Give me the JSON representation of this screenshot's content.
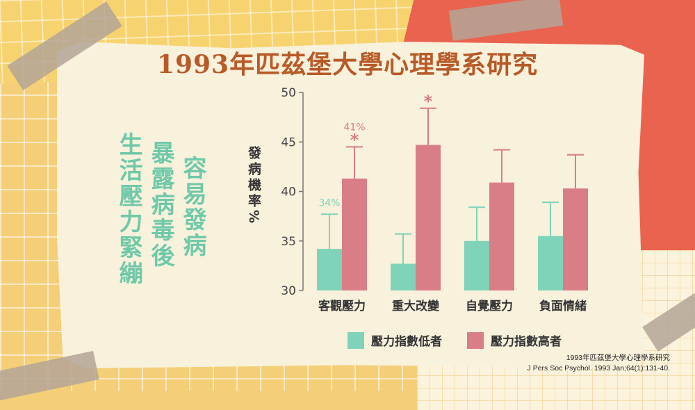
{
  "title": "1993年匹茲堡大學心理學系研究",
  "side_text": [
    "生活壓力緊繃",
    "暴露病毒後",
    "容易發病"
  ],
  "citation": [
    "1993年匹茲堡大學心理學系研究",
    "J Pers Soc Psychol. 1993 Jan;64(1):131-40."
  ],
  "colors": {
    "low": "#7fd3b8",
    "high": "#d97d87",
    "title": "#b85a27",
    "side_text": "#6fc9a8"
  },
  "chart_data": {
    "type": "bar",
    "ylabel": "發病機率%",
    "ylim": [
      30,
      50
    ],
    "yticks": [
      30,
      35,
      40,
      45,
      50
    ],
    "categories": [
      "客觀壓力",
      "重大改變",
      "自覺壓力",
      "負面情緒"
    ],
    "series": [
      {
        "name": "壓力指數低者",
        "values": [
          34.2,
          32.7,
          35.0,
          35.5
        ],
        "error_top": [
          37.7,
          35.7,
          38.4,
          38.9
        ]
      },
      {
        "name": "壓力指數高者",
        "values": [
          41.3,
          44.7,
          40.9,
          40.3
        ],
        "error_top": [
          44.5,
          48.4,
          44.2,
          43.7
        ]
      }
    ],
    "annotations": [
      {
        "category": 0,
        "series": 0,
        "text": "34%"
      },
      {
        "category": 0,
        "series": 1,
        "text": "41%"
      },
      {
        "category": 0,
        "series": 1,
        "text": "*"
      },
      {
        "category": 1,
        "series": 1,
        "text": "*"
      }
    ],
    "legend": "bottom",
    "grid": false
  }
}
